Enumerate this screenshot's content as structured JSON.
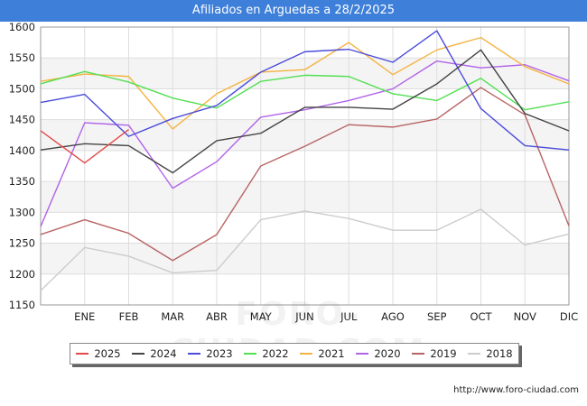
{
  "header": {
    "title": "Afiliados en Arguedas a 28/2/2025"
  },
  "footer": {
    "source": "http://www.foro-ciudad.com",
    "watermark": "FORO-CIUDAD.COM"
  },
  "chart_data": {
    "type": "line",
    "title": "Afiliados en Arguedas a 28/2/2025",
    "x_labels": [
      "",
      "ENE",
      "FEB",
      "MAR",
      "ABR",
      "MAY",
      "JUN",
      "JUL",
      "AGO",
      "SEP",
      "OCT",
      "NOV",
      "DIC"
    ],
    "ylim": [
      1150,
      1600
    ],
    "yticks": [
      1150,
      1200,
      1250,
      1300,
      1350,
      1400,
      1450,
      1500,
      1550,
      1600
    ],
    "legend_position": "bottom",
    "grid": true,
    "series": [
      {
        "name": "2025",
        "color": "#e34a4a",
        "values": [
          1432,
          1380,
          1434
        ]
      },
      {
        "name": "2024",
        "color": "#444444",
        "values": [
          1401,
          1411,
          1408,
          1364,
          1416,
          1428,
          1470,
          1470,
          1467,
          1508,
          1563,
          1460,
          1432
        ]
      },
      {
        "name": "2023",
        "color": "#4b4bdc",
        "values": [
          1478,
          1491,
          1423,
          1452,
          1473,
          1527,
          1560,
          1564,
          1543,
          1594,
          1468,
          1408,
          1401
        ]
      },
      {
        "name": "2022",
        "color": "#52e052",
        "values": [
          1508,
          1528,
          1511,
          1485,
          1469,
          1512,
          1522,
          1520,
          1492,
          1481,
          1517,
          1466,
          1479
        ]
      },
      {
        "name": "2021",
        "color": "#f5b342",
        "values": [
          1512,
          1524,
          1520,
          1435,
          1492,
          1527,
          1531,
          1575,
          1523,
          1563,
          1583,
          1536,
          1508
        ]
      },
      {
        "name": "2020",
        "color": "#b163e8",
        "values": [
          1277,
          1445,
          1441,
          1339,
          1382,
          1454,
          1466,
          1481,
          1500,
          1545,
          1534,
          1539,
          1513
        ]
      },
      {
        "name": "2019",
        "color": "#b86464",
        "values": [
          1264,
          1288,
          1266,
          1222,
          1264,
          1375,
          1407,
          1442,
          1438,
          1451,
          1502,
          1458,
          1278
        ]
      },
      {
        "name": "2018",
        "color": "#cccccc",
        "values": [
          1173,
          1243,
          1229,
          1202,
          1206,
          1288,
          1302,
          1290,
          1271,
          1271,
          1305,
          1247,
          1265
        ]
      }
    ]
  }
}
